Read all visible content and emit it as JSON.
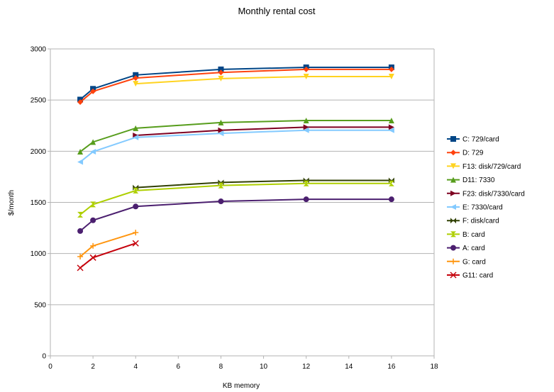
{
  "chart_data": {
    "type": "line",
    "title": "Monthly rental cost",
    "xlabel": "KB memory",
    "ylabel": "$/month",
    "xlim": [
      0,
      18
    ],
    "ylim": [
      0,
      3000
    ],
    "xticks": [
      0,
      2,
      4,
      6,
      8,
      10,
      12,
      14,
      16,
      18
    ],
    "yticks": [
      0,
      500,
      1000,
      1500,
      2000,
      2500,
      3000
    ],
    "grid": "horizontal",
    "legend_position": "right",
    "series": [
      {
        "name": "C: 729/card",
        "color": "#004586",
        "marker": "square",
        "x": [
          1.4,
          2,
          4,
          8,
          12,
          16
        ],
        "y": [
          2505,
          2610,
          2745,
          2800,
          2820,
          2820
        ]
      },
      {
        "name": "D: 729",
        "color": "#ff420e",
        "marker": "diamond",
        "x": [
          1.4,
          2,
          4,
          8,
          12,
          16
        ],
        "y": [
          2480,
          2585,
          2715,
          2770,
          2800,
          2800
        ]
      },
      {
        "name": "F13: disk/729/card",
        "color": "#ffd320",
        "marker": "triangle-down",
        "x": [
          4,
          8,
          12,
          16
        ],
        "y": [
          2660,
          2710,
          2730,
          2730
        ]
      },
      {
        "name": "D11: 7330",
        "color": "#579d1c",
        "marker": "triangle-up",
        "x": [
          1.4,
          2,
          4,
          8,
          12,
          16
        ],
        "y": [
          1995,
          2090,
          2225,
          2280,
          2300,
          2300
        ]
      },
      {
        "name": "F23: disk/7330/card",
        "color": "#7e0021",
        "marker": "triangle-right",
        "x": [
          4,
          8,
          12,
          16
        ],
        "y": [
          2155,
          2205,
          2235,
          2235
        ]
      },
      {
        "name": "E: 7330/card",
        "color": "#83caff",
        "marker": "triangle-left",
        "x": [
          1.4,
          2,
          4,
          8,
          12,
          16
        ],
        "y": [
          1895,
          1995,
          2135,
          2175,
          2205,
          2205
        ]
      },
      {
        "name": "F: disk/card",
        "color": "#314004",
        "marker": "bowtie",
        "x": [
          4,
          8,
          12,
          16
        ],
        "y": [
          1645,
          1695,
          1715,
          1715
        ]
      },
      {
        "name": "B: card",
        "color": "#aecf00",
        "marker": "hourglass",
        "x": [
          1.4,
          2,
          4,
          8,
          12,
          16
        ],
        "y": [
          1380,
          1480,
          1615,
          1665,
          1685,
          1685
        ]
      },
      {
        "name": "A: card",
        "color": "#4b1f6f",
        "marker": "circle",
        "x": [
          1.4,
          2,
          4,
          8,
          12,
          16
        ],
        "y": [
          1220,
          1325,
          1460,
          1510,
          1530,
          1530
        ]
      },
      {
        "name": "G: card",
        "color": "#ff950e",
        "marker": "plus",
        "x": [
          1.4,
          2,
          4
        ],
        "y": [
          970,
          1075,
          1205
        ]
      },
      {
        "name": "G11: card",
        "color": "#c5000b",
        "marker": "cross",
        "x": [
          1.4,
          2,
          4
        ],
        "y": [
          860,
          960,
          1100
        ]
      }
    ]
  }
}
